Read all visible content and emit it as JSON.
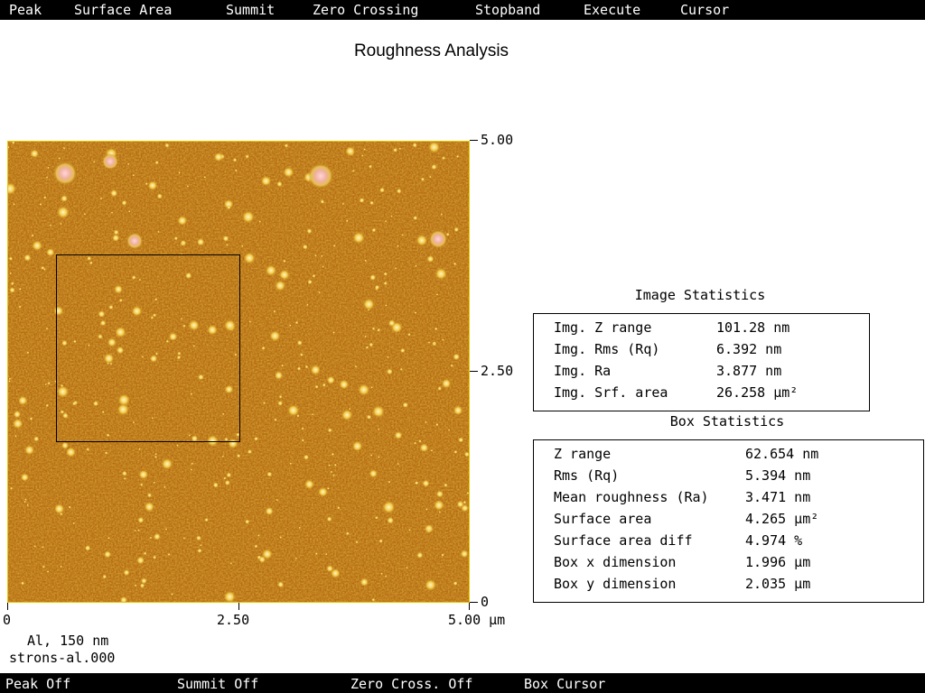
{
  "menu": [
    "Peak",
    "Surface Area",
    "Summit",
    "Zero Crossing",
    "Stopband",
    "Execute",
    "Cursor"
  ],
  "title": "Roughness Analysis",
  "axes": {
    "right": [
      "5.00",
      "2.50",
      "0"
    ],
    "bottom": [
      "0",
      "2.50",
      "5.00 µm"
    ]
  },
  "sample": {
    "material": "Al, 150 nm",
    "file": "strons-al.000"
  },
  "image_statistics": {
    "title": "Image Statistics",
    "rows": [
      {
        "label": "Img. Z range",
        "value": "101.28 nm"
      },
      {
        "label": "Img. Rms (Rq)",
        "value": "6.392 nm"
      },
      {
        "label": "Img. Ra",
        "value": "3.877 nm"
      },
      {
        "label": "Img. Srf. area",
        "value": "26.258 µm²"
      }
    ]
  },
  "box_statistics": {
    "title": "Box Statistics",
    "rows": [
      {
        "label": "Z range",
        "value": "62.654 nm"
      },
      {
        "label": "Rms (Rq)",
        "value": "5.394 nm"
      },
      {
        "label": "Mean roughness (Ra)",
        "value": "3.471 nm"
      },
      {
        "label": "Surface area",
        "value": "4.265 µm²"
      },
      {
        "label": "Surface area diff",
        "value": "4.974 %"
      },
      {
        "label": "Box x dimension",
        "value": "1.996 µm"
      },
      {
        "label": "Box y dimension",
        "value": "2.035 µm"
      }
    ]
  },
  "status": [
    "Peak Off",
    "Summit Off",
    "Zero Cross. Off",
    "Box Cursor"
  ],
  "colors": {
    "bar_bg": "#000000",
    "image_base": "#b56a0c",
    "image_border": "#e8c800",
    "particle": "#f6d25a"
  }
}
